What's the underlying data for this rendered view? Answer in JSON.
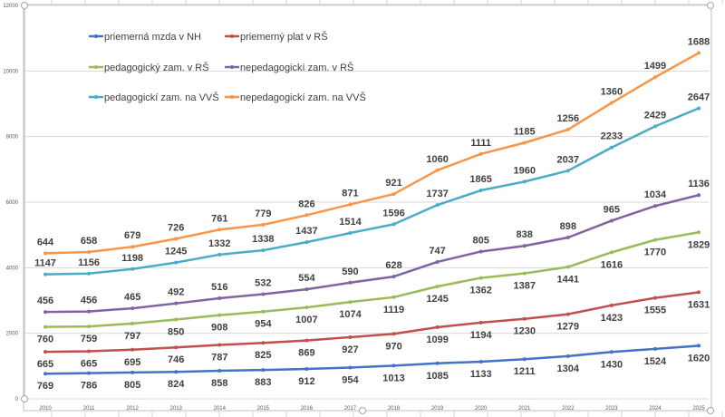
{
  "chart_data": {
    "type": "line",
    "stacked": true,
    "title": "",
    "xlabel": "",
    "ylabel": "",
    "ylim": [
      0,
      12000
    ],
    "yticks": [
      0,
      2000,
      4000,
      6000,
      8000,
      10000,
      12000
    ],
    "grid": true,
    "legend_position": "top-left",
    "categories": [
      "2010",
      "2011",
      "2012",
      "2013",
      "2014",
      "2015",
      "2016",
      "2017",
      "2018",
      "2019",
      "2020",
      "2021",
      "2022",
      "2023",
      "2024",
      "2025"
    ],
    "series": [
      {
        "name": "priemerná mzda v NH",
        "color": "#4472c4",
        "values": [
          769,
          786,
          805,
          824,
          858,
          883,
          912,
          954,
          1013,
          1085,
          1133,
          1211,
          1304,
          1430,
          1524,
          1620
        ]
      },
      {
        "name": "priemerný plat v RŠ",
        "color": "#c0504d",
        "values": [
          665,
          665,
          695,
          746,
          787,
          825,
          869,
          927,
          970,
          1099,
          1194,
          1230,
          1279,
          1423,
          1555,
          1631
        ]
      },
      {
        "name": "pedagogický zam. v RŠ",
        "color": "#9bbb59",
        "values": [
          760,
          759,
          797,
          850,
          908,
          954,
          1007,
          1074,
          1119,
          1245,
          1362,
          1387,
          1441,
          1616,
          1770,
          1829
        ]
      },
      {
        "name": "nepedagogickí zam. v RŠ",
        "color": "#8064a2",
        "values": [
          456,
          456,
          465,
          492,
          516,
          532,
          554,
          590,
          628,
          747,
          805,
          838,
          898,
          965,
          1034,
          1136
        ]
      },
      {
        "name": "pedagogickí zam. na VVŠ",
        "color": "#4bacc6",
        "values": [
          1147,
          1156,
          1198,
          1245,
          1332,
          1338,
          1437,
          1514,
          1596,
          1737,
          1865,
          1960,
          2037,
          2233,
          2429,
          2647
        ]
      },
      {
        "name": "nepedagogickí zam. na VVŠ",
        "color": "#f79646",
        "values": [
          644,
          658,
          679,
          726,
          761,
          779,
          826,
          871,
          921,
          1060,
          1111,
          1185,
          1256,
          1360,
          1499,
          1688
        ]
      }
    ]
  }
}
